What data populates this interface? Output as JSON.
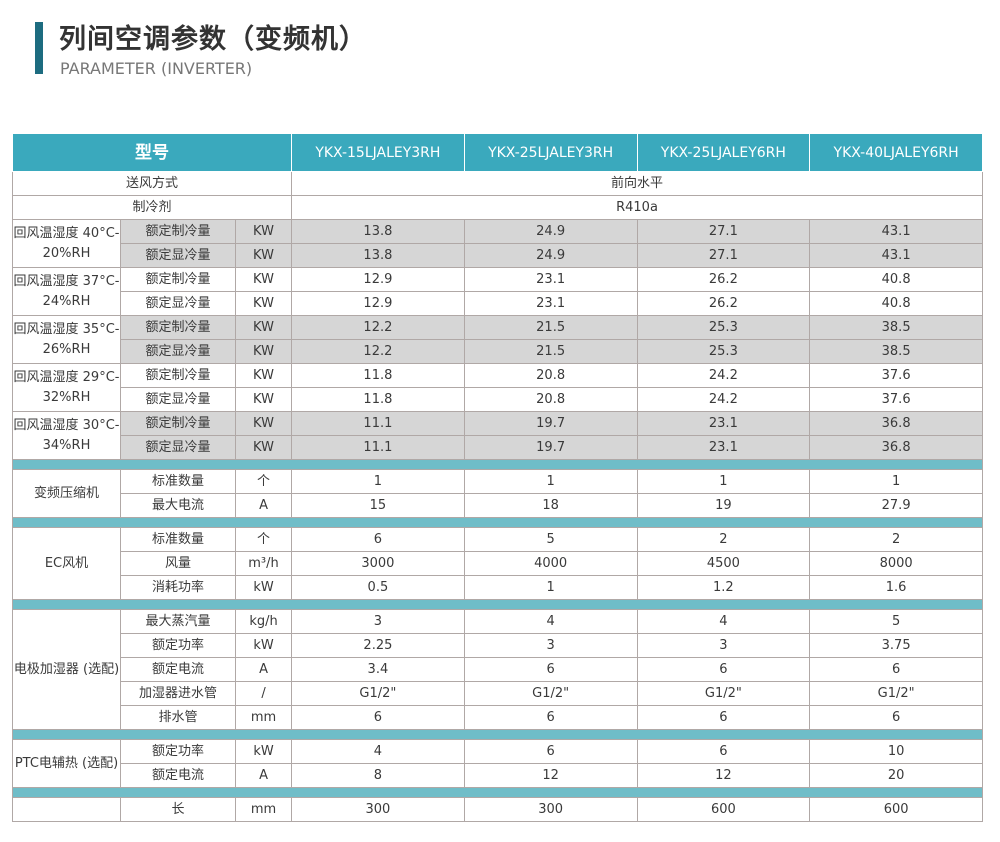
{
  "header": {
    "title": "列间空调参数（变频机）",
    "subtitle": "PARAMETER (INVERTER)",
    "accent": "#1d6c80"
  },
  "table": {
    "model_label": "型号",
    "models": [
      "YKX-15LJALEY3RH",
      "YKX-25LJALEY3RH",
      "YKX-25LJALEY6RH",
      "YKX-40LJALEY6RH"
    ],
    "span_rows": [
      {
        "label": "送风方式",
        "value": "前向水平"
      },
      {
        "label": "制冷剂",
        "value": "R410a"
      }
    ],
    "groups": [
      {
        "label": "回风温湿度 40°C-20%RH",
        "shaded": true,
        "rows": [
          {
            "item": "额定制冷量",
            "unit": "KW",
            "values": [
              "13.8",
              "24.9",
              "27.1",
              "43.1"
            ]
          },
          {
            "item": "额定显冷量",
            "unit": "KW",
            "values": [
              "13.8",
              "24.9",
              "27.1",
              "43.1"
            ]
          }
        ]
      },
      {
        "label": "回风温湿度 37°C-24%RH",
        "shaded": false,
        "rows": [
          {
            "item": "额定制冷量",
            "unit": "KW",
            "values": [
              "12.9",
              "23.1",
              "26.2",
              "40.8"
            ]
          },
          {
            "item": "额定显冷量",
            "unit": "KW",
            "values": [
              "12.9",
              "23.1",
              "26.2",
              "40.8"
            ]
          }
        ]
      },
      {
        "label": "回风温湿度 35°C-26%RH",
        "shaded": true,
        "rows": [
          {
            "item": "额定制冷量",
            "unit": "KW",
            "values": [
              "12.2",
              "21.5",
              "25.3",
              "38.5"
            ]
          },
          {
            "item": "额定显冷量",
            "unit": "KW",
            "values": [
              "12.2",
              "21.5",
              "25.3",
              "38.5"
            ]
          }
        ]
      },
      {
        "label": "回风温湿度 29°C-32%RH",
        "shaded": false,
        "rows": [
          {
            "item": "额定制冷量",
            "unit": "KW",
            "values": [
              "11.8",
              "20.8",
              "24.2",
              "37.6"
            ]
          },
          {
            "item": "额定显冷量",
            "unit": "KW",
            "values": [
              "11.8",
              "20.8",
              "24.2",
              "37.6"
            ]
          }
        ]
      },
      {
        "label": "回风温湿度 30°C-34%RH",
        "shaded": true,
        "rows": [
          {
            "item": "额定制冷量",
            "unit": "KW",
            "values": [
              "11.1",
              "19.7",
              "23.1",
              "36.8"
            ]
          },
          {
            "item": "额定显冷量",
            "unit": "KW",
            "values": [
              "11.1",
              "19.7",
              "23.1",
              "36.8"
            ]
          }
        ]
      },
      {
        "sep": true
      },
      {
        "label": "变频压缩机",
        "rows": [
          {
            "item": "标准数量",
            "unit": "个",
            "values": [
              "1",
              "1",
              "1",
              "1"
            ]
          },
          {
            "item": "最大电流",
            "unit": "A",
            "values": [
              "15",
              "18",
              "19",
              "27.9"
            ]
          }
        ]
      },
      {
        "sep": true
      },
      {
        "label": "EC风机",
        "rows": [
          {
            "item": "标准数量",
            "unit": "个",
            "values": [
              "6",
              "5",
              "2",
              "2"
            ]
          },
          {
            "item": "风量",
            "unit": "m³/h",
            "values": [
              "3000",
              "4000",
              "4500",
              "8000"
            ]
          },
          {
            "item": "消耗功率",
            "unit": "kW",
            "values": [
              "0.5",
              "1",
              "1.2",
              "1.6"
            ]
          }
        ]
      },
      {
        "sep": true
      },
      {
        "label": "电极加湿器 (选配)",
        "rows": [
          {
            "item": "最大蒸汽量",
            "unit": "kg/h",
            "values": [
              "3",
              "4",
              "4",
              "5"
            ]
          },
          {
            "item": "额定功率",
            "unit": "kW",
            "values": [
              "2.25",
              "3",
              "3",
              "3.75"
            ]
          },
          {
            "item": "额定电流",
            "unit": "A",
            "values": [
              "3.4",
              "6",
              "6",
              "6"
            ]
          },
          {
            "item": "加湿器进水管",
            "unit": "/",
            "values": [
              "G1/2\"",
              "G1/2\"",
              "G1/2\"",
              "G1/2\""
            ]
          },
          {
            "item": "排水管",
            "unit": "mm",
            "values": [
              "6",
              "6",
              "6",
              "6"
            ]
          }
        ]
      },
      {
        "sep": true
      },
      {
        "label": "PTC电辅热 (选配)",
        "rows": [
          {
            "item": "额定功率",
            "unit": "kW",
            "values": [
              "4",
              "6",
              "6",
              "10"
            ]
          },
          {
            "item": "额定电流",
            "unit": "A",
            "values": [
              "8",
              "12",
              "12",
              "20"
            ]
          }
        ]
      },
      {
        "sep": true
      },
      {
        "label": "",
        "rows": [
          {
            "item": "长",
            "unit": "mm",
            "values": [
              "300",
              "300",
              "600",
              "600"
            ]
          }
        ]
      }
    ]
  }
}
